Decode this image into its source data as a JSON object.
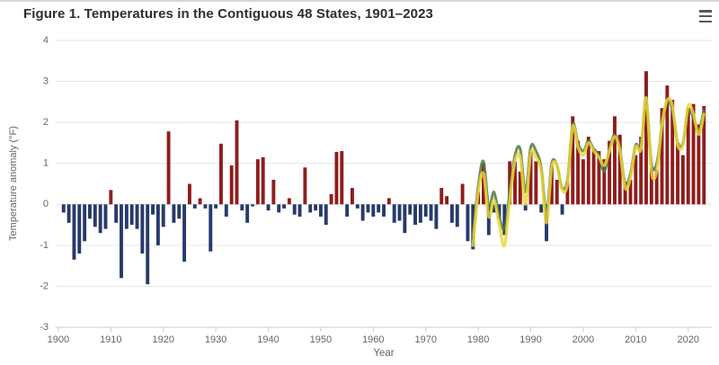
{
  "header": {
    "title": "Figure 1. Temperatures in the Contiguous 48 States, 1901–2023",
    "title_color": "#2d2d35"
  },
  "context_menu": {
    "icon": "hamburger-menu-icon",
    "color": "#59595c"
  },
  "chart_data": {
    "type": "bar",
    "title": "Figure 1. Temperatures in the Contiguous 48 States, 1901–2023",
    "xlabel": "Year",
    "ylabel": "Temperature anomaly (°F)",
    "xlim": [
      1899.5,
      2024.5
    ],
    "ylim": [
      -3,
      4
    ],
    "x_ticks": [
      1900,
      1910,
      1920,
      1930,
      1940,
      1950,
      1960,
      1970,
      1980,
      1990,
      2000,
      2010,
      2020
    ],
    "y_ticks": [
      4,
      3,
      2,
      1,
      0,
      -1,
      -2,
      -3
    ],
    "grid": true,
    "legend": "none",
    "background": "#ffffff",
    "gridline_color": "#e6e6e6",
    "axis_line_color": "#cccccc",
    "tick_label_color": "#666666",
    "series": [
      {
        "name": "annual-surface-anomaly-bars",
        "type": "bar",
        "year_start": 1901,
        "color_positive": "#8f1d1d",
        "color_negative": "#273a6b",
        "values": [
          -0.2,
          -0.45,
          -1.35,
          -1.2,
          -0.9,
          -0.35,
          -0.55,
          -0.7,
          -0.6,
          0.35,
          -0.45,
          -1.8,
          -0.6,
          -0.5,
          -0.6,
          -1.2,
          -1.95,
          -0.25,
          -1.0,
          -0.55,
          1.78,
          -0.45,
          -0.35,
          -1.4,
          0.5,
          -0.1,
          0.15,
          -0.1,
          -1.15,
          -0.1,
          1.48,
          -0.3,
          0.95,
          2.05,
          -0.15,
          -0.45,
          -0.05,
          1.1,
          1.15,
          -0.15,
          0.6,
          -0.2,
          -0.1,
          0.15,
          -0.25,
          -0.3,
          0.9,
          -0.2,
          -0.15,
          -0.3,
          -0.5,
          0.25,
          1.28,
          1.3,
          -0.3,
          0.4,
          -0.1,
          -0.4,
          -0.2,
          -0.3,
          -0.2,
          -0.3,
          0.15,
          -0.45,
          -0.4,
          -0.7,
          -0.25,
          -0.5,
          -0.45,
          -0.3,
          -0.4,
          -0.6,
          0.4,
          0.2,
          -0.45,
          -0.55,
          0.5,
          -0.9,
          -1.1,
          0.3,
          1.0,
          -0.75,
          -0.2,
          -0.35,
          -0.75,
          1.05,
          1.05,
          0.8,
          -0.15,
          1.28,
          1.05,
          -0.2,
          -0.9,
          0.95,
          0.6,
          -0.25,
          0.55,
          2.15,
          1.55,
          1.1,
          1.65,
          1.35,
          1.3,
          1.1,
          1.55,
          2.15,
          1.7,
          0.55,
          0.6,
          1.2,
          1.65,
          3.25,
          0.9,
          0.85,
          2.35,
          2.9,
          2.55,
          1.5,
          1.2,
          2.35,
          2.45,
          1.95,
          2.4
        ]
      },
      {
        "name": "smoothed-line-green",
        "type": "line",
        "year_start": 1979,
        "color": "rgba(85,120,70,0.85)",
        "stroke_width": 3,
        "values": [
          -0.75,
          0.45,
          1.05,
          -0.05,
          0.3,
          -0.3,
          -0.6,
          0.3,
          1.2,
          1.35,
          0.3,
          1.4,
          1.3,
          0.9,
          -0.2,
          1.0,
          0.95,
          0.4,
          0.6,
          1.95,
          1.5,
          1.3,
          1.55,
          1.35,
          1.2,
          0.8,
          1.35,
          1.7,
          1.35,
          0.5,
          0.75,
          1.45,
          1.4,
          2.55,
          1.0,
          1.0,
          1.9,
          2.5,
          2.3,
          1.5,
          1.5,
          2.3,
          2.1,
          1.8,
          2.3
        ]
      },
      {
        "name": "smoothed-line-yellow",
        "type": "line",
        "year_start": 1979,
        "color": "rgba(235,215,55,0.82)",
        "stroke_width": 3.4,
        "values": [
          -1.0,
          0.3,
          0.75,
          -0.3,
          0.1,
          -0.5,
          -1.0,
          0.1,
          1.05,
          1.15,
          0.0,
          1.25,
          1.15,
          0.8,
          -0.45,
          0.9,
          0.95,
          0.35,
          0.5,
          1.9,
          1.4,
          1.2,
          1.5,
          1.3,
          1.15,
          0.95,
          1.3,
          1.65,
          1.3,
          0.4,
          0.65,
          1.4,
          1.35,
          2.6,
          0.8,
          0.8,
          1.95,
          2.55,
          2.4,
          1.45,
          1.45,
          2.4,
          2.2,
          1.7,
          2.2
        ]
      }
    ]
  }
}
